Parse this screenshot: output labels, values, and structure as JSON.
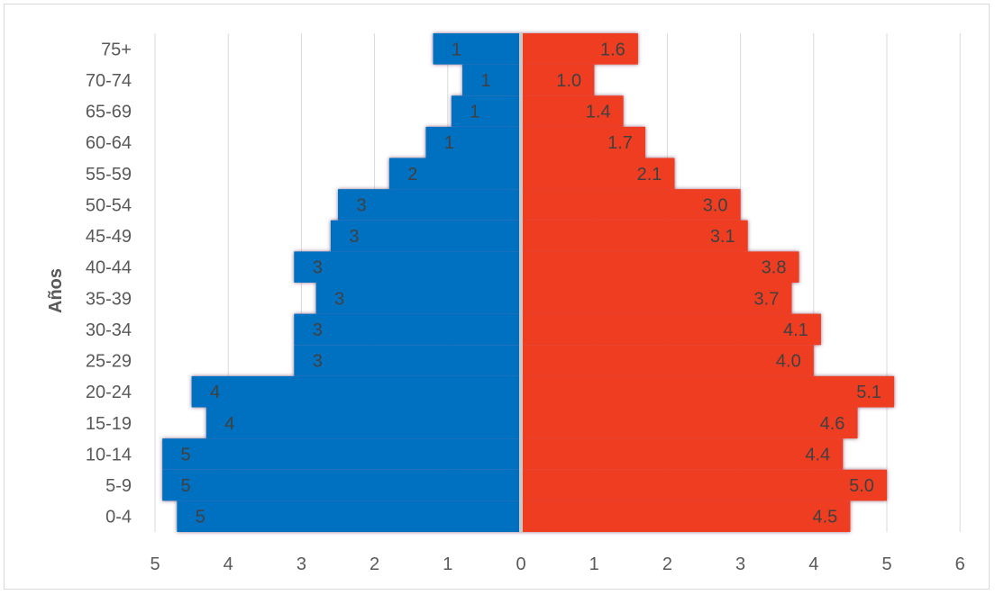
{
  "chart_data": {
    "type": "bar",
    "orientation": "horizontal",
    "title": "",
    "ylabel": "Años",
    "xlabel": "",
    "categories": [
      "0-4",
      "5-9",
      "10-14",
      "15-19",
      "20-24",
      "25-29",
      "30-34",
      "35-39",
      "40-44",
      "45-49",
      "50-54",
      "55-59",
      "60-64",
      "65-69",
      "70-74",
      "75+"
    ],
    "series": [
      {
        "color": "#0070c0",
        "side": "left",
        "values": [
          4.7,
          4.9,
          4.9,
          4.3,
          4.5,
          3.1,
          3.1,
          2.8,
          3.1,
          2.6,
          2.5,
          1.8,
          1.3,
          0.95,
          0.8,
          1.2
        ],
        "labels": [
          "5",
          "5",
          "5",
          "4",
          "4",
          "3",
          "3",
          "3",
          "3",
          "3",
          "3",
          "2",
          "1",
          "1",
          "1",
          "1"
        ]
      },
      {
        "color": "#ef3e24",
        "side": "right",
        "values": [
          4.5,
          5.0,
          4.4,
          4.6,
          5.1,
          4.0,
          4.1,
          3.7,
          3.8,
          3.1,
          3.0,
          2.1,
          1.7,
          1.4,
          1.0,
          1.6
        ],
        "labels": [
          "4.5",
          "5.0",
          "4.4",
          "4.6",
          "5.1",
          "4.0",
          "4.1",
          "3.7",
          "3.8",
          "3.1",
          "3.0",
          "2.1",
          "1.7",
          "1.4",
          "1.0",
          "1.6"
        ]
      }
    ],
    "x_ticks": [
      "5",
      "4",
      "3",
      "2",
      "1",
      "0",
      "1",
      "2",
      "3",
      "4",
      "5",
      "6"
    ],
    "xlim": [
      -5,
      6
    ],
    "grid": "vertical",
    "legend": "none"
  }
}
